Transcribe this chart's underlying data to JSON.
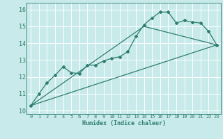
{
  "title": "",
  "xlabel": "Humidex (Indice chaleur)",
  "background_color": "#c8eaea",
  "grid_color": "#ffffff",
  "line_color": "#2e7d6e",
  "xlim": [
    -0.5,
    23.5
  ],
  "ylim": [
    9.8,
    16.4
  ],
  "xticks": [
    0,
    1,
    2,
    3,
    4,
    5,
    6,
    7,
    8,
    9,
    10,
    11,
    12,
    13,
    14,
    15,
    16,
    17,
    18,
    19,
    20,
    21,
    22,
    23
  ],
  "yticks": [
    10,
    11,
    12,
    13,
    14,
    15,
    16
  ],
  "series1_x": [
    0,
    1,
    2,
    3,
    4,
    5,
    6,
    7,
    8,
    9,
    10,
    11,
    12,
    13,
    14,
    15,
    16,
    17,
    18,
    19,
    20,
    21,
    22,
    23
  ],
  "series1_y": [
    10.3,
    11.0,
    11.65,
    12.1,
    12.6,
    12.25,
    12.2,
    12.7,
    12.7,
    12.95,
    13.1,
    13.2,
    13.5,
    14.4,
    15.1,
    15.5,
    15.85,
    15.85,
    15.2,
    15.35,
    15.25,
    15.2,
    14.7,
    13.9
  ],
  "series2_x": [
    0,
    23
  ],
  "series2_y": [
    10.3,
    13.9
  ],
  "series3_x": [
    0,
    14,
    23
  ],
  "series3_y": [
    10.3,
    15.0,
    13.9
  ]
}
